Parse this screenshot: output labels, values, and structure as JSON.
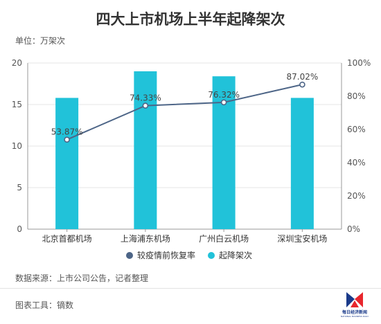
{
  "title": "四大上市机场上半年起降架次",
  "unit_label": "单位：万架次",
  "source": "数据来源：上市公司公告，记者整理",
  "tool": "图表工具：镝数",
  "logo": {
    "text": "每日经济新闻",
    "sub": "NATIONAL BUSINESS DAILY"
  },
  "colors": {
    "bar": "#21c2d9",
    "line": "#4d6587",
    "text": "#333333",
    "axis": "#999999"
  },
  "chart_data": {
    "type": "bar+line",
    "categories": [
      "北京首都机场",
      "上海浦东机场",
      "广州白云机场",
      "深圳宝安机场"
    ],
    "series": [
      {
        "name": "起降架次",
        "type": "bar",
        "axis": "left",
        "values": [
          15.8,
          19.0,
          18.4,
          15.8
        ]
      },
      {
        "name": "较疫情前恢复率",
        "type": "line",
        "axis": "right",
        "values": [
          53.87,
          74.33,
          76.32,
          87.02
        ],
        "labels": [
          "53.87%",
          "74.33%",
          "76.32%",
          "87.02%"
        ]
      }
    ],
    "y_left": {
      "min": 0,
      "max": 20,
      "ticks": [
        "0",
        "5",
        "10",
        "15",
        "20"
      ]
    },
    "y_right": {
      "min": 0,
      "max": 100,
      "ticks": [
        "0%",
        "20%",
        "40%",
        "60%",
        "80%",
        "100%"
      ]
    },
    "legend": [
      "较疫情前恢复率",
      "起降架次"
    ],
    "legend_position": "bottom",
    "grid": true
  }
}
